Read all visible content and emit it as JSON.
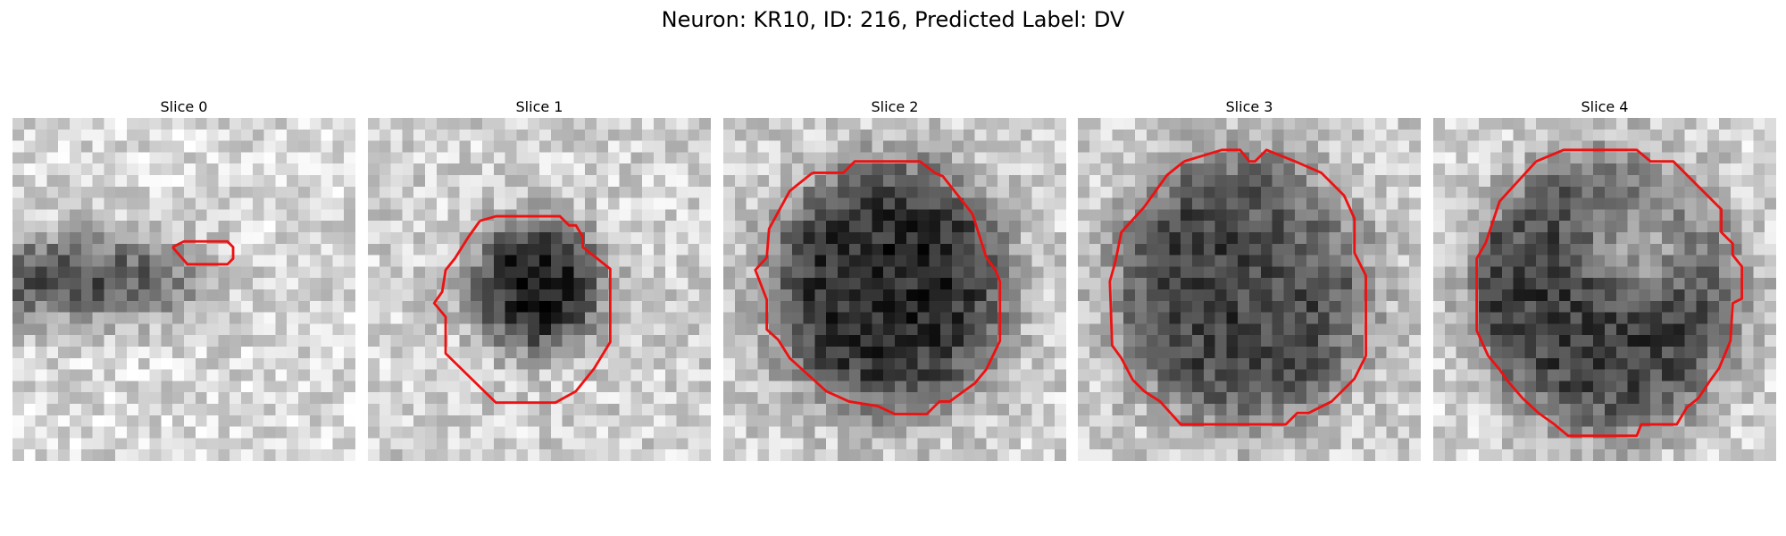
{
  "figure": {
    "title": "Neuron: KR10, ID: 216, Predicted Label: DV"
  },
  "contour_color": "#ee1111",
  "grid_size": 30,
  "panels": [
    {
      "title": "Slice 0",
      "darkness_profile": "dark band on left half",
      "contour": [
        [
          14.0,
          11.3
        ],
        [
          15.0,
          10.8
        ],
        [
          18.8,
          10.8
        ],
        [
          19.3,
          11.3
        ],
        [
          19.3,
          12.3
        ],
        [
          18.8,
          12.8
        ],
        [
          15.3,
          12.8
        ],
        [
          14.0,
          11.3
        ]
      ]
    },
    {
      "title": "Slice 1",
      "darkness_profile": "dark ellipse upper center",
      "contour": [
        [
          9.8,
          9.0
        ],
        [
          11.2,
          8.6
        ],
        [
          16.8,
          8.6
        ],
        [
          17.6,
          9.4
        ],
        [
          18.2,
          9.4
        ],
        [
          18.8,
          10.4
        ],
        [
          18.8,
          11.3
        ],
        [
          21.2,
          13.2
        ],
        [
          21.2,
          19.6
        ],
        [
          19.8,
          21.9
        ],
        [
          18.2,
          23.9
        ],
        [
          16.4,
          24.9
        ],
        [
          11.2,
          24.9
        ],
        [
          6.8,
          20.6
        ],
        [
          6.8,
          17.4
        ],
        [
          5.8,
          16.2
        ],
        [
          6.5,
          15.2
        ],
        [
          6.8,
          13.3
        ],
        [
          7.6,
          12.3
        ],
        [
          8.8,
          10.4
        ],
        [
          9.8,
          9.0
        ]
      ]
    },
    {
      "title": "Slice 2",
      "darkness_profile": "large dark disc",
      "contour": [
        [
          7.8,
          4.8
        ],
        [
          10.5,
          4.8
        ],
        [
          11.5,
          3.8
        ],
        [
          17.2,
          3.8
        ],
        [
          18.5,
          4.8
        ],
        [
          19.2,
          5.1
        ],
        [
          21.8,
          8.4
        ],
        [
          23.0,
          12.2
        ],
        [
          23.8,
          13.3
        ],
        [
          24.2,
          14.3
        ],
        [
          24.2,
          19.5
        ],
        [
          23.0,
          22.0
        ],
        [
          22.0,
          23.2
        ],
        [
          19.8,
          24.8
        ],
        [
          18.9,
          24.8
        ],
        [
          17.8,
          25.9
        ],
        [
          15.0,
          25.9
        ],
        [
          13.5,
          25.2
        ],
        [
          11.0,
          24.8
        ],
        [
          9.0,
          23.9
        ],
        [
          7.9,
          22.9
        ],
        [
          5.8,
          21.0
        ],
        [
          4.8,
          19.4
        ],
        [
          3.8,
          18.5
        ],
        [
          3.8,
          15.9
        ],
        [
          2.8,
          13.3
        ],
        [
          3.8,
          12.2
        ],
        [
          4.0,
          9.7
        ],
        [
          5.8,
          6.4
        ],
        [
          7.8,
          4.8
        ]
      ]
    },
    {
      "title": "Slice 3",
      "darkness_profile": "large dark disc, lighter upper right",
      "contour": [
        [
          9.3,
          3.8
        ],
        [
          12.6,
          2.8
        ],
        [
          14.2,
          2.8
        ],
        [
          15.0,
          3.8
        ],
        [
          15.5,
          3.8
        ],
        [
          16.5,
          2.8
        ],
        [
          19.0,
          3.8
        ],
        [
          21.3,
          4.8
        ],
        [
          23.3,
          6.8
        ],
        [
          24.2,
          8.8
        ],
        [
          24.2,
          11.8
        ],
        [
          25.2,
          13.8
        ],
        [
          25.2,
          20.8
        ],
        [
          24.2,
          22.8
        ],
        [
          22.2,
          24.8
        ],
        [
          20.2,
          25.8
        ],
        [
          19.2,
          25.8
        ],
        [
          18.2,
          26.8
        ],
        [
          9.0,
          26.8
        ],
        [
          7.2,
          24.8
        ],
        [
          5.8,
          23.9
        ],
        [
          4.8,
          22.9
        ],
        [
          3.8,
          21.0
        ],
        [
          3.0,
          19.9
        ],
        [
          2.8,
          14.3
        ],
        [
          3.3,
          12.5
        ],
        [
          3.8,
          10.0
        ],
        [
          5.8,
          7.8
        ],
        [
          7.8,
          5.0
        ],
        [
          9.3,
          3.8
        ]
      ]
    },
    {
      "title": "Slice 4",
      "darkness_profile": "large dark disc with bright patch upper right",
      "contour": [
        [
          9.0,
          3.8
        ],
        [
          11.4,
          2.8
        ],
        [
          17.8,
          2.8
        ],
        [
          19.0,
          3.8
        ],
        [
          21.0,
          3.8
        ],
        [
          25.2,
          8.0
        ],
        [
          25.2,
          10.0
        ],
        [
          26.2,
          11.0
        ],
        [
          26.2,
          12.0
        ],
        [
          27.0,
          13.0
        ],
        [
          27.0,
          15.8
        ],
        [
          26.2,
          16.2
        ],
        [
          26.0,
          19.5
        ],
        [
          25.0,
          21.9
        ],
        [
          24.2,
          23.0
        ],
        [
          23.2,
          24.5
        ],
        [
          22.2,
          25.3
        ],
        [
          21.3,
          26.8
        ],
        [
          18.2,
          26.8
        ],
        [
          17.8,
          27.8
        ],
        [
          11.8,
          27.8
        ],
        [
          10.6,
          26.8
        ],
        [
          9.2,
          25.8
        ],
        [
          7.8,
          24.5
        ],
        [
          6.5,
          23.0
        ],
        [
          5.8,
          22.0
        ],
        [
          4.8,
          20.8
        ],
        [
          3.8,
          18.6
        ],
        [
          3.8,
          12.3
        ],
        [
          4.6,
          10.9
        ],
        [
          5.8,
          7.3
        ],
        [
          9.0,
          3.8
        ]
      ]
    }
  ]
}
